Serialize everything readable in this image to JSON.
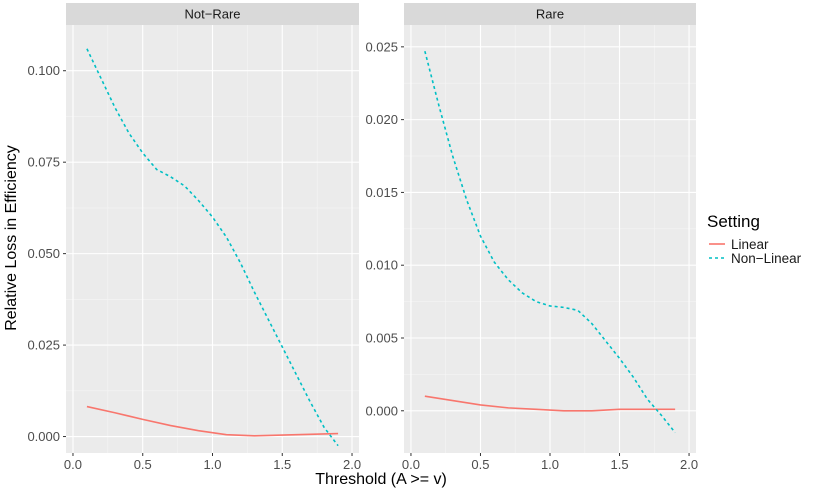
{
  "chart_data": {
    "type": "line",
    "xlabel": "Threshold (A >= v)",
    "ylabel": "Relative Loss in Efficiency",
    "legend": {
      "title": "Setting",
      "entries": [
        {
          "name": "Linear",
          "color": "#F8766D",
          "linetype": "solid"
        },
        {
          "name": "Non−Linear",
          "color": "#00BFC4",
          "linetype": "dashed"
        }
      ],
      "placement": "right"
    },
    "grid": true,
    "panels": [
      {
        "title": "Not−Rare",
        "xlim": [
          -0.05,
          2.05
        ],
        "ylim": [
          -0.0045,
          0.1125
        ],
        "xticks": [
          0.0,
          0.5,
          1.0,
          1.5,
          2.0
        ],
        "xtick_labels": [
          "0.0",
          "0.5",
          "1.0",
          "1.5",
          "2.0"
        ],
        "yticks": [
          0.0,
          0.025,
          0.05,
          0.075,
          0.1
        ],
        "ytick_labels": [
          "0.000",
          "0.025",
          "0.050",
          "0.075",
          "0.100"
        ],
        "series": [
          {
            "name": "Linear",
            "x": [
              0.1,
              0.3,
              0.5,
              0.7,
              0.9,
              1.1,
              1.3,
              1.5,
              1.7,
              1.9
            ],
            "y": [
              0.0082,
              0.0065,
              0.0047,
              0.003,
              0.0016,
              0.0005,
              0.0002,
              0.0004,
              0.0006,
              0.0008
            ]
          },
          {
            "name": "Non−Linear",
            "x": [
              0.1,
              0.2,
              0.3,
              0.4,
              0.5,
              0.6,
              0.7,
              0.8,
              0.9,
              1.0,
              1.1,
              1.2,
              1.3,
              1.4,
              1.5,
              1.6,
              1.7,
              1.8,
              1.9
            ],
            "y": [
              0.106,
              0.098,
              0.09,
              0.083,
              0.0775,
              0.073,
              0.071,
              0.0685,
              0.0645,
              0.06,
              0.0545,
              0.0475,
              0.0395,
              0.032,
              0.0245,
              0.017,
              0.0095,
              0.0025,
              -0.0025
            ]
          }
        ]
      },
      {
        "title": "Rare",
        "xlim": [
          -0.05,
          2.05
        ],
        "ylim": [
          -0.0029,
          0.0265
        ],
        "xticks": [
          0.0,
          0.5,
          1.0,
          1.5,
          2.0
        ],
        "xtick_labels": [
          "0.0",
          "0.5",
          "1.0",
          "1.5",
          "2.0"
        ],
        "yticks": [
          0.0,
          0.005,
          0.01,
          0.015,
          0.02,
          0.025
        ],
        "ytick_labels": [
          "0.000",
          "0.005",
          "0.010",
          "0.015",
          "0.020",
          "0.025"
        ],
        "series": [
          {
            "name": "Linear",
            "x": [
              0.1,
              0.3,
              0.5,
              0.7,
              0.9,
              1.1,
              1.3,
              1.5,
              1.7,
              1.9
            ],
            "y": [
              0.001,
              0.0007,
              0.0004,
              0.0002,
              0.0001,
              0.0,
              0.0,
              0.0001,
              0.0001,
              0.0001
            ]
          },
          {
            "name": "Non−Linear",
            "x": [
              0.1,
              0.2,
              0.3,
              0.4,
              0.5,
              0.6,
              0.7,
              0.8,
              0.9,
              1.0,
              1.1,
              1.2,
              1.3,
              1.4,
              1.5,
              1.6,
              1.7,
              1.8,
              1.9
            ],
            "y": [
              0.0247,
              0.021,
              0.0175,
              0.0145,
              0.012,
              0.0102,
              0.009,
              0.0081,
              0.0075,
              0.0072,
              0.0071,
              0.0069,
              0.006,
              0.0048,
              0.0036,
              0.0023,
              0.0008,
              -0.0003,
              -0.0015
            ]
          }
        ]
      }
    ]
  }
}
